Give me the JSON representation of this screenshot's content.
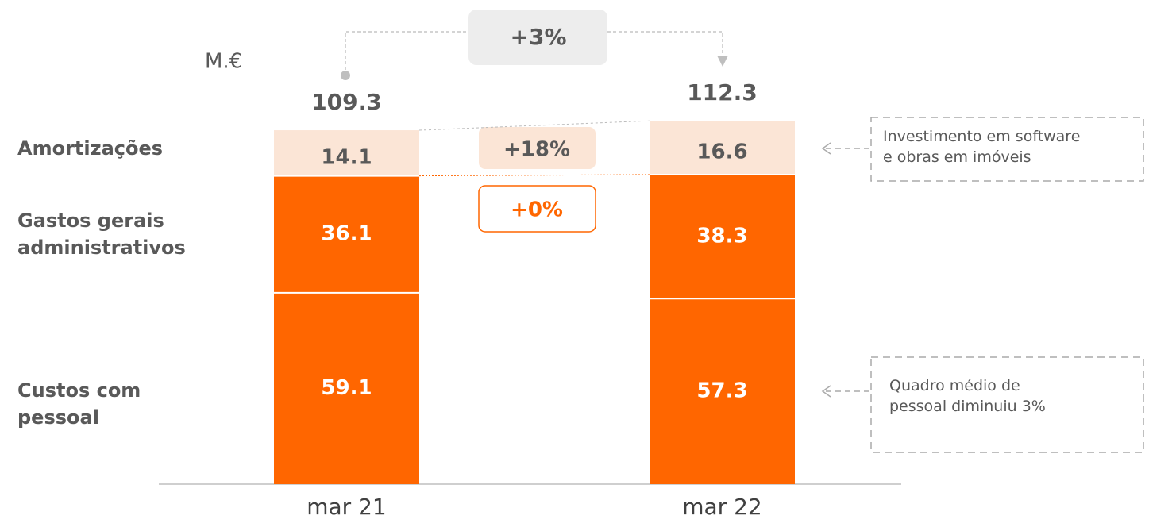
{
  "chart_data": {
    "type": "stacked_bar",
    "unit_label": "M.€",
    "categories": [
      "mar 21",
      "mar 22"
    ],
    "series": [
      {
        "name": "Custos com pessoal",
        "color": "#ff6600",
        "label_color": "#ffffff",
        "values": [
          59.1,
          57.3
        ]
      },
      {
        "name": "Gastos gerais administrativos",
        "color": "#ff6600",
        "label_color": "#ffffff",
        "values": [
          36.1,
          38.3
        ]
      },
      {
        "name": "Amortizações",
        "color": "#fbe5d6",
        "label_color": "#595959",
        "values": [
          14.1,
          16.6
        ]
      }
    ],
    "totals": [
      109.3,
      112.3
    ],
    "ylim": [
      0,
      125
    ],
    "annotations": [
      "+3%",
      "+18%",
      "+0%"
    ],
    "notes": [
      {
        "series": 2,
        "lines": [
          "Investimento em software",
          "e obras em imóveis"
        ]
      },
      {
        "series": 0,
        "lines": [
          "Quadro médio de",
          "pessoal diminuiu 3%"
        ]
      }
    ]
  }
}
